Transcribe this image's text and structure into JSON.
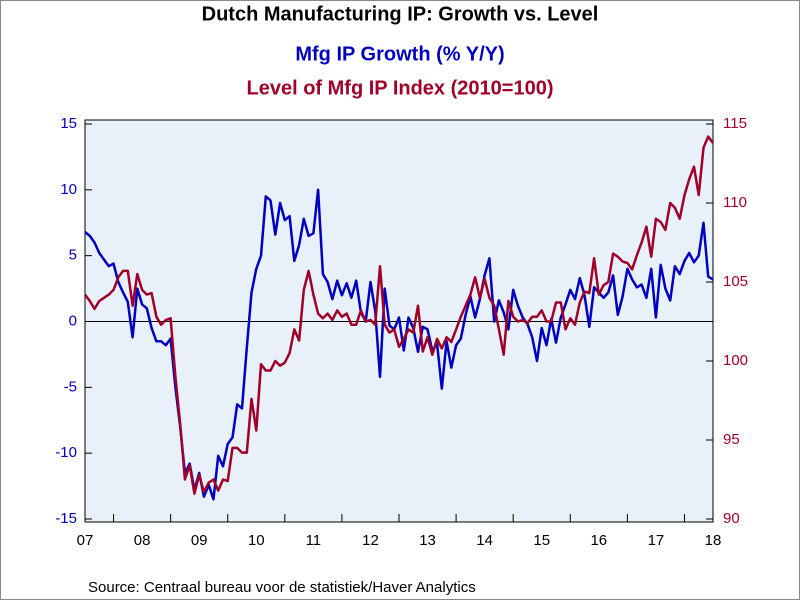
{
  "chart_data": {
    "type": "line",
    "title": "Dutch Manufacturing IP: Growth vs. Level",
    "subtitle": "Mfg IP Growth (% Y/Y)",
    "subtitle2": "Level of Mfg IP Index (2010=100)",
    "source": "Source:  Centraal bureau voor de statistiek/Haver Analytics",
    "categories": [
      "07",
      null,
      null,
      null,
      null,
      null,
      null,
      null,
      null,
      null,
      null,
      null,
      "08",
      null,
      null,
      null,
      null,
      null,
      null,
      null,
      null,
      null,
      null,
      null,
      "09",
      null,
      null,
      null,
      null,
      null,
      null,
      null,
      null,
      null,
      null,
      null,
      "10",
      null,
      null,
      null,
      null,
      null,
      null,
      null,
      null,
      null,
      null,
      null,
      "11",
      null,
      null,
      null,
      null,
      null,
      null,
      null,
      null,
      null,
      null,
      null,
      "12",
      null,
      null,
      null,
      null,
      null,
      null,
      null,
      null,
      null,
      null,
      null,
      "13",
      null,
      null,
      null,
      null,
      null,
      null,
      null,
      null,
      null,
      null,
      null,
      "14",
      null,
      null,
      null,
      null,
      null,
      null,
      null,
      null,
      null,
      null,
      null,
      "15",
      null,
      null,
      null,
      null,
      null,
      null,
      null,
      null,
      null,
      null,
      null,
      "16",
      null,
      null,
      null,
      null,
      null,
      null,
      null,
      null,
      null,
      null,
      null,
      "17",
      null,
      null,
      null,
      null,
      null,
      null,
      null,
      null,
      null,
      null,
      null,
      "18"
    ],
    "series": [
      {
        "name": "Mfg IP Growth (% Y/Y)",
        "color": "#0000c0",
        "values": [
          6.8,
          6.5,
          6,
          5.2,
          4.7,
          4.2,
          4.4,
          3,
          2.2,
          1.5,
          -1.2,
          2.5,
          1.3,
          1,
          -0.5,
          -1.5,
          -1.5,
          -1.8,
          -1.3,
          -5,
          -8,
          -11.5,
          -10.8,
          -12.8,
          -11.5,
          -13.3,
          -12.4,
          -13.5,
          -10.2,
          -11,
          -9.3,
          -8.8,
          -6.3,
          -6.6,
          -2,
          2.2,
          4,
          5,
          9.5,
          9.2,
          6.6,
          9,
          7.7,
          8,
          4.6,
          5.8,
          7.8,
          6.5,
          6.7,
          10,
          3.6,
          3,
          1.7,
          3.1,
          2,
          2.9,
          1.8,
          3.1,
          0.7,
          0,
          3,
          0.8,
          -4.2,
          2.5,
          -0.3,
          -0.6,
          0.3,
          -2.2,
          0.3,
          -0.5,
          -2.3,
          -0.4,
          -0.6,
          -2.2,
          -1.7,
          -5.1,
          -1.5,
          -3.5,
          -1.8,
          -1.3,
          0.5,
          1.9,
          0.3,
          1.7,
          3.5,
          4.8,
          0,
          1.6,
          0.7,
          -0.6,
          2.4,
          1.2,
          0.3,
          -0.2,
          -1.2,
          -3,
          -0.5,
          -1.8,
          0.2,
          -1.6,
          0.3,
          1.3,
          2.4,
          1.7,
          3.3,
          2,
          -0.4,
          2.6,
          2.2,
          1.8,
          2.2,
          3.5,
          0.5,
          1.9,
          4,
          3.2,
          2.6,
          2.8,
          1.8,
          4,
          0.3,
          4.3,
          2.5,
          1.6,
          4.2,
          3.6,
          4.6,
          5.2,
          4.5,
          5,
          7.5,
          3.4,
          3.2
        ]
      },
      {
        "name": "Level of Mfg IP Index (2010=100)",
        "color": "#a00028",
        "axis": "y2",
        "values": [
          104.2,
          103.8,
          103.3,
          103.8,
          104,
          104.2,
          104.5,
          105.3,
          105.7,
          105.7,
          103.5,
          105.5,
          104.5,
          104.2,
          104.3,
          102.8,
          102.3,
          102.6,
          102.7,
          99,
          96,
          92.5,
          93.4,
          91.6,
          92.8,
          91.7,
          92.3,
          92.5,
          91.8,
          92.5,
          92.4,
          94.5,
          94.5,
          94.2,
          94.2,
          97.6,
          95.6,
          99.8,
          99.4,
          99.4,
          100,
          99.7,
          99.9,
          100.5,
          102,
          101.3,
          104.5,
          105.7,
          104.2,
          103,
          102.7,
          103,
          102.6,
          103.2,
          102.8,
          103,
          102.3,
          102.3,
          103.2,
          102.5,
          102.6,
          102.3,
          106,
          102.3,
          101.8,
          102,
          100.9,
          101.4,
          102,
          101.8,
          103.5,
          100.6,
          101.5,
          100.4,
          101.4,
          100.8,
          101.5,
          101.2,
          102,
          102.8,
          103.5,
          104.2,
          105.3,
          104,
          105.2,
          104,
          103.5,
          102,
          100.4,
          103.8,
          102.8,
          102.5,
          102.6,
          102.4,
          102.8,
          102.8,
          103.2,
          102.5,
          102.5,
          103.7,
          103.7,
          102,
          102.7,
          102.3,
          103.7,
          104.4,
          104.3,
          106.5,
          104.2,
          104.8,
          105,
          106.8,
          106.6,
          106.3,
          106.2,
          105.8,
          106.7,
          107.5,
          108.5,
          106.6,
          109,
          108.8,
          108.3,
          110,
          109.7,
          109,
          110.5,
          111.5,
          112.3,
          110.5,
          113.5,
          114.2,
          113.8
        ]
      }
    ],
    "ylim": [
      -15,
      15
    ],
    "yticks": [
      -15,
      -10,
      -5,
      0,
      5,
      10,
      15
    ],
    "y2lim": [
      90,
      115
    ],
    "y2ticks": [
      90,
      95,
      100,
      105,
      110,
      115
    ],
    "zero_line": true
  }
}
